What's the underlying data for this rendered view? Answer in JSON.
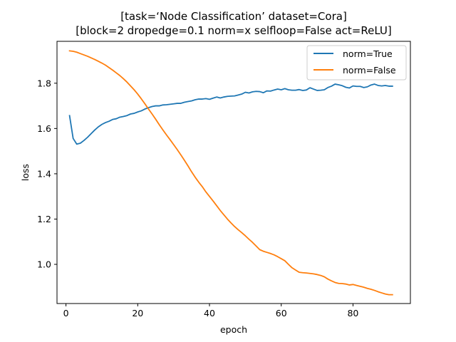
{
  "chart_data": {
    "type": "line",
    "title_line1": "[task=‘Node Classification’ dataset=Cora]",
    "title_line2": "[block=2 dropedge=0.1 norm=x selfloop=False act=ReLU]",
    "xlabel": "epoch",
    "ylabel": "loss",
    "xlim": [
      -2.5,
      96.0
    ],
    "ylim": [
      0.827,
      1.985
    ],
    "xticks": [
      0,
      20,
      40,
      60,
      80
    ],
    "yticks": [
      1.0,
      1.2,
      1.4,
      1.6,
      1.8
    ],
    "legend_placement": "top-right",
    "grid": false,
    "series": [
      {
        "name": "norm=True",
        "color": "#1f77b4",
        "x": [
          1,
          2,
          3,
          4,
          5,
          6,
          7,
          8,
          9,
          10,
          11,
          12,
          13,
          14,
          15,
          16,
          17,
          18,
          19,
          20,
          21,
          22,
          23,
          24,
          25,
          26,
          27,
          28,
          29,
          30,
          31,
          32,
          33,
          34,
          35,
          36,
          37,
          38,
          39,
          40,
          41,
          42,
          43,
          44,
          45,
          46,
          47,
          48,
          49,
          50,
          51,
          52,
          53,
          54,
          55,
          56,
          57,
          58,
          59,
          60,
          61,
          62,
          63,
          64,
          65,
          66,
          67,
          68,
          69,
          70,
          71,
          72,
          73,
          74,
          75,
          76,
          77,
          78,
          79,
          80,
          81,
          82,
          83,
          84,
          85,
          86,
          87,
          88,
          89,
          90,
          91
        ],
        "values": [
          1.657,
          1.556,
          1.531,
          1.535,
          1.547,
          1.561,
          1.577,
          1.593,
          1.607,
          1.618,
          1.626,
          1.632,
          1.64,
          1.643,
          1.65,
          1.653,
          1.657,
          1.664,
          1.667,
          1.673,
          1.678,
          1.686,
          1.692,
          1.697,
          1.7,
          1.7,
          1.704,
          1.705,
          1.707,
          1.709,
          1.711,
          1.711,
          1.716,
          1.719,
          1.722,
          1.727,
          1.73,
          1.73,
          1.732,
          1.729,
          1.734,
          1.739,
          1.735,
          1.739,
          1.742,
          1.743,
          1.744,
          1.748,
          1.752,
          1.76,
          1.757,
          1.762,
          1.764,
          1.763,
          1.758,
          1.766,
          1.765,
          1.77,
          1.774,
          1.771,
          1.776,
          1.771,
          1.769,
          1.769,
          1.772,
          1.768,
          1.77,
          1.78,
          1.774,
          1.768,
          1.769,
          1.771,
          1.781,
          1.787,
          1.796,
          1.793,
          1.789,
          1.782,
          1.779,
          1.788,
          1.786,
          1.786,
          1.781,
          1.784,
          1.792,
          1.796,
          1.79,
          1.788,
          1.79,
          1.787,
          1.787
        ]
      },
      {
        "name": "norm=False",
        "color": "#ff7f0e",
        "x": [
          1,
          2,
          3,
          4,
          5,
          6,
          7,
          8,
          9,
          10,
          11,
          12,
          13,
          14,
          15,
          16,
          17,
          18,
          19,
          20,
          21,
          22,
          23,
          24,
          25,
          26,
          27,
          28,
          29,
          30,
          31,
          32,
          33,
          34,
          35,
          36,
          37,
          38,
          39,
          40,
          41,
          42,
          43,
          44,
          45,
          46,
          47,
          48,
          49,
          50,
          51,
          52,
          53,
          54,
          55,
          56,
          57,
          58,
          59,
          60,
          61,
          62,
          63,
          64,
          65,
          66,
          67,
          68,
          69,
          70,
          71,
          72,
          73,
          74,
          75,
          76,
          77,
          78,
          79,
          80,
          81,
          82,
          83,
          84,
          85,
          86,
          87,
          88,
          89,
          90,
          91
        ],
        "values": [
          1.943,
          1.941,
          1.937,
          1.931,
          1.925,
          1.919,
          1.912,
          1.905,
          1.897,
          1.889,
          1.88,
          1.869,
          1.858,
          1.846,
          1.834,
          1.82,
          1.805,
          1.788,
          1.771,
          1.752,
          1.731,
          1.709,
          1.686,
          1.664,
          1.641,
          1.617,
          1.594,
          1.572,
          1.551,
          1.529,
          1.507,
          1.484,
          1.46,
          1.435,
          1.409,
          1.385,
          1.363,
          1.343,
          1.32,
          1.3,
          1.28,
          1.259,
          1.238,
          1.219,
          1.2,
          1.183,
          1.167,
          1.153,
          1.14,
          1.126,
          1.111,
          1.097,
          1.081,
          1.065,
          1.058,
          1.053,
          1.048,
          1.042,
          1.034,
          1.025,
          1.016,
          1.0,
          0.985,
          0.975,
          0.965,
          0.963,
          0.962,
          0.96,
          0.958,
          0.955,
          0.951,
          0.945,
          0.935,
          0.927,
          0.92,
          0.916,
          0.915,
          0.913,
          0.909,
          0.911,
          0.907,
          0.903,
          0.899,
          0.894,
          0.89,
          0.885,
          0.879,
          0.874,
          0.869,
          0.866,
          0.866
        ]
      }
    ]
  }
}
